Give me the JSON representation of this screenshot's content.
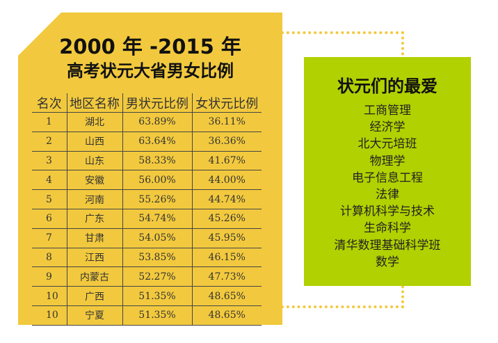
{
  "title": {
    "line1": "2000 年 -2015 年",
    "line2": "高考状元大省男女比例"
  },
  "table": {
    "headers": [
      "名次",
      "地区名称",
      "男状元比例",
      "女状元比例"
    ],
    "rows": [
      [
        "1",
        "湖北",
        "63.89%",
        "36.11%"
      ],
      [
        "2",
        "山西",
        "63.64%",
        "36.36%"
      ],
      [
        "3",
        "山东",
        "58.33%",
        "41.67%"
      ],
      [
        "4",
        "安徽",
        "56.00%",
        "44.00%"
      ],
      [
        "5",
        "河南",
        "55.26%",
        "44.74%"
      ],
      [
        "6",
        "广东",
        "54.74%",
        "45.26%"
      ],
      [
        "7",
        "甘肃",
        "54.05%",
        "45.95%"
      ],
      [
        "8",
        "江西",
        "53.85%",
        "46.15%"
      ],
      [
        "9",
        "内蒙古",
        "52.27%",
        "47.73%"
      ],
      [
        "10",
        "广西",
        "51.35%",
        "48.65%"
      ],
      [
        "10",
        "宁夏",
        "51.35%",
        "48.65%"
      ]
    ]
  },
  "favorites": {
    "title": "状元们的最爱",
    "items": [
      "工商管理",
      "经济学",
      "北大元培班",
      "物理学",
      "电子信息工程",
      "法律",
      "计算机科学与技术",
      "生命科学",
      "清华数理基础科学班",
      "数学"
    ]
  },
  "colors": {
    "left_card": "#f2c93e",
    "right_card": "#b2d100",
    "dotted_connector": "#f2c93e"
  }
}
